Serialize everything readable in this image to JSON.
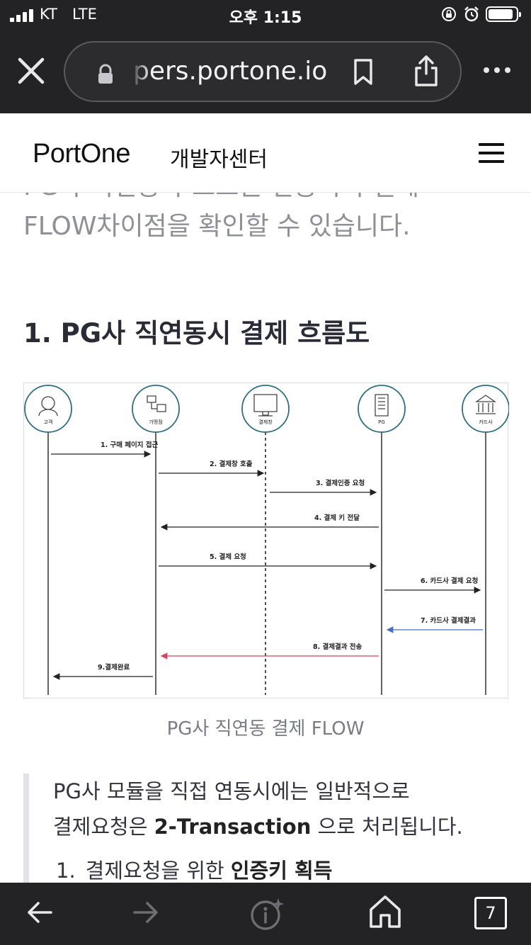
{
  "status_bar": {
    "carrier": "KT",
    "network": "LTE",
    "time": "오후 1:15"
  },
  "browser": {
    "url": "pers.portone.io",
    "tab_count": "7"
  },
  "header": {
    "logo": "PortOne",
    "subtitle": "개발자센터"
  },
  "content": {
    "intro_line1": "PG사 직연동과 포트원 연동시의 결제",
    "intro_line2": "FLOW차이점을 확인할 수 있습니다.",
    "section_title": "1. PG사 직연동시 결제 흐름도",
    "caption": "PG사 직연동 결제 FLOW",
    "quote_line1": "PG사 모듈을 직접 연동시에는 일반적으로",
    "quote_line2_prefix": "결제요청은 ",
    "quote_line2_bold": "2-Transaction",
    "quote_line2_suffix": " 으로 처리됩니다.",
    "list_item_num": "1.",
    "list_item_prefix": "결제요청을 위한 ",
    "list_item_bold": "인증키 획득"
  },
  "diagram": {
    "actors": [
      "고객",
      "가맹점",
      "결제창",
      "PG",
      "카드사"
    ],
    "steps": [
      {
        "label": "1. 구매 페이지 접근"
      },
      {
        "label": "2. 결제창 호출"
      },
      {
        "label": "3. 결제인증 요청"
      },
      {
        "label": "4. 결제 키 전달"
      },
      {
        "label": "5. 결제 요청"
      },
      {
        "label": "6. 카드사 결제 요청"
      },
      {
        "label": "7. 카드사 결제결과"
      },
      {
        "label": "8. 결제결과 전송"
      },
      {
        "label": "9.결제완료"
      }
    ],
    "colors": {
      "actor_ring": "#2f6f80",
      "arrow": "#222222",
      "arrow_step7": "#4a6fbf",
      "arrow_step8": "#d2455a"
    }
  }
}
